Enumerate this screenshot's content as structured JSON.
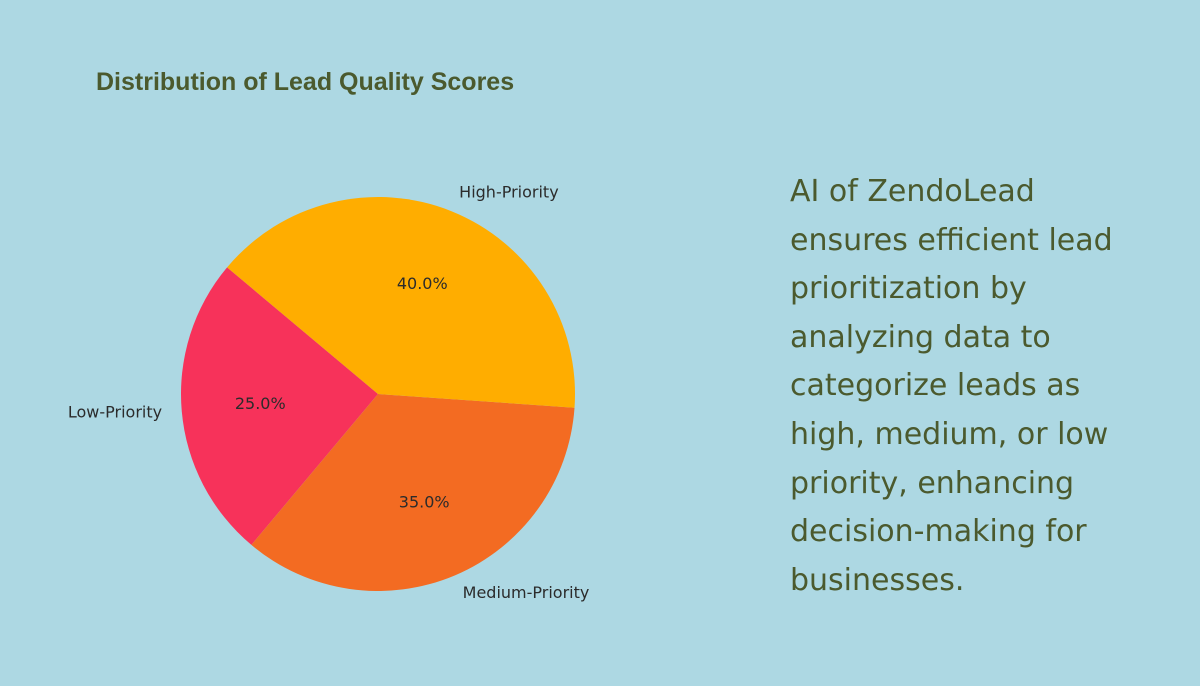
{
  "chart_data": {
    "type": "pie",
    "title": "Distribution of Lead Quality Scores",
    "categories": [
      "Low-Priority",
      "Medium-Priority",
      "High-Priority"
    ],
    "values": [
      25.0,
      35.0,
      40.0
    ],
    "value_labels": [
      "25.0%",
      "35.0%",
      "40.0%"
    ],
    "colors": [
      "#f7325a",
      "#f36b22",
      "#ffad00"
    ],
    "start_angle_deg": 140,
    "direction": "counterclockwise",
    "legend": "none"
  },
  "description": "AI of ZendoLead ensures efficient lead prioritization by analyzing data to categorize leads as high, medium, or low priority, enhancing decision-making for businesses."
}
